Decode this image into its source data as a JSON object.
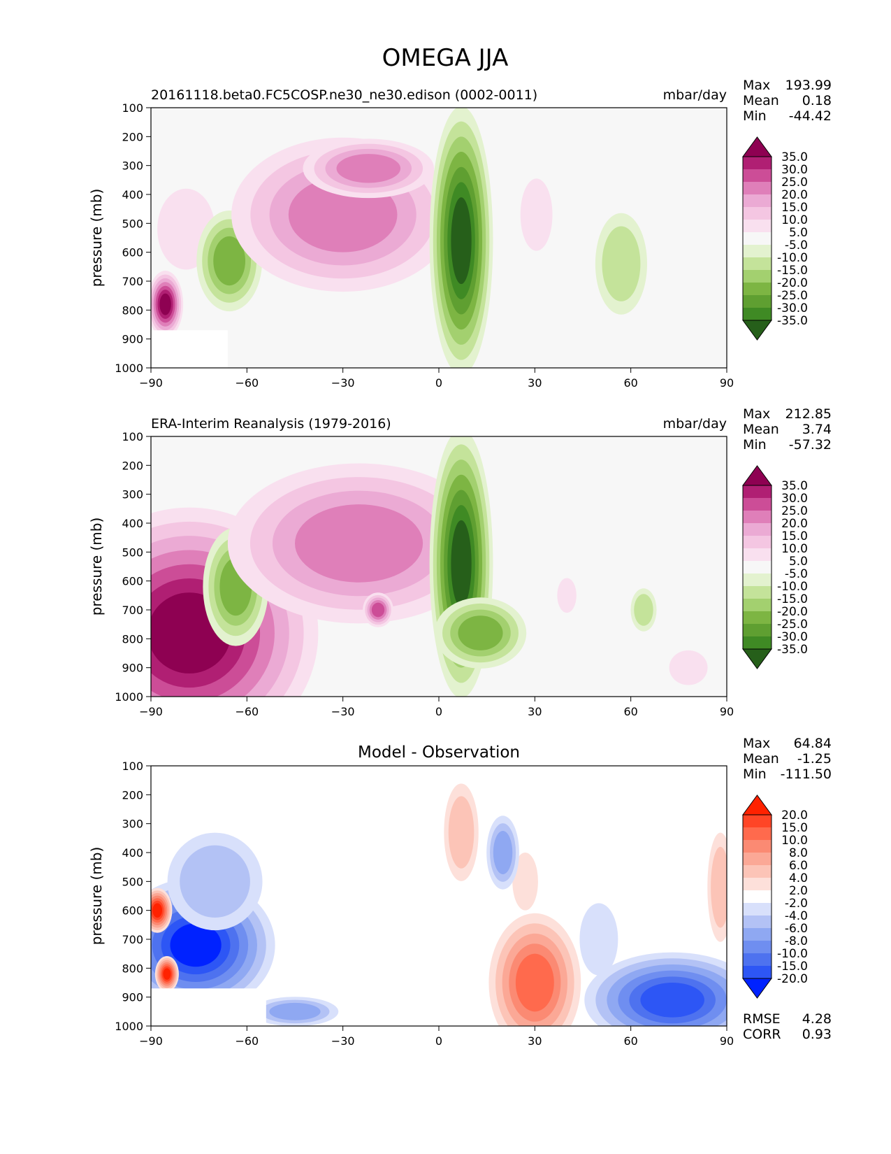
{
  "figure_title": "OMEGA JJA",
  "colors": {
    "omega_levels": [
      "-35.0",
      "-30.0",
      "-25.0",
      "-20.0",
      "-15.0",
      "-10.0",
      "-5.0",
      "5.0",
      "10.0",
      "15.0",
      "20.0",
      "25.0",
      "30.0",
      "35.0"
    ],
    "omega_colors": [
      "#265f1a",
      "#3f8a24",
      "#5f9f31",
      "#7db543",
      "#a3d06f",
      "#c4e39a",
      "#e3f2cf",
      "#f7f7f7",
      "#f9e0ef",
      "#f4c6e2",
      "#ebaad4",
      "#df7fb9",
      "#cc4d97",
      "#b01f73",
      "#8e0152"
    ],
    "diff_levels": [
      "-20.0",
      "-15.0",
      "-10.0",
      "-8.0",
      "-6.0",
      "-4.0",
      "-2.0",
      "2.0",
      "4.0",
      "6.0",
      "8.0",
      "10.0",
      "15.0",
      "20.0"
    ],
    "diff_colors": [
      "#0022ff",
      "#2d56f5",
      "#4e72ef",
      "#6f8ef0",
      "#8fa8f2",
      "#b3c2f5",
      "#d8e0fb",
      "#ffffff",
      "#fde0da",
      "#fcc4b7",
      "#fba896",
      "#fb8a73",
      "#ff6a4d",
      "#ff4526",
      "#ff2200"
    ]
  },
  "chart_data": [
    {
      "type": "heatmap",
      "name_label": "20161118.beta0.FC5COSP.ne30_ne30.edison (0002-0011)",
      "center_title": "",
      "units": "mbar/day",
      "ylabel": "pressure (mb)",
      "xlabel": "",
      "xlim": [
        -90,
        90
      ],
      "ylim": [
        1000,
        100
      ],
      "x_ticks": [
        "−90",
        "−60",
        "−30",
        "0",
        "30",
        "60",
        "90"
      ],
      "y_ticks": [
        "100",
        "200",
        "300",
        "400",
        "500",
        "600",
        "700",
        "800",
        "900",
        "1000"
      ],
      "stats": [
        [
          "Max",
          "193.99"
        ],
        [
          "Mean",
          "0.18"
        ],
        [
          "Min",
          "-44.42"
        ]
      ],
      "colorbar": "omega",
      "surface_mask": {
        "lat": [
          -90,
          -66
        ],
        "p_from": 870
      },
      "features": [
        {
          "lat": -79,
          "p": 520,
          "w": 9,
          "h": 280,
          "level": 8
        },
        {
          "lat": -65.5,
          "p": 630,
          "w": 5,
          "h": 170,
          "level": 3
        },
        {
          "lat": -30,
          "p": 470,
          "w": 17,
          "h": 260,
          "level": 11
        },
        {
          "lat": -22,
          "p": 310,
          "w": 10,
          "h": 100,
          "level": 11
        },
        {
          "lat": 7,
          "p": 560,
          "w": 3.2,
          "h": 300,
          "level": 0
        },
        {
          "lat": 30.5,
          "p": 470,
          "w": 5,
          "h": 250,
          "level": 8
        },
        {
          "lat": 57,
          "p": 640,
          "w": 6,
          "h": 260,
          "level": 5
        },
        {
          "lat": -85.5,
          "p": 780,
          "w": 1.8,
          "h": 75,
          "level": 14
        }
      ]
    },
    {
      "type": "heatmap",
      "name_label": "ERA-Interim Reanalysis (1979-2016)",
      "center_title": "",
      "units": "mbar/day",
      "ylabel": "pressure (mb)",
      "xlabel": "",
      "xlim": [
        -90,
        90
      ],
      "ylim": [
        1000,
        100
      ],
      "x_ticks": [
        "−90",
        "−60",
        "−30",
        "0",
        "30",
        "60",
        "90"
      ],
      "y_ticks": [
        "100",
        "200",
        "300",
        "400",
        "500",
        "600",
        "700",
        "800",
        "900",
        "1000"
      ],
      "stats": [
        [
          "Max",
          "212.85"
        ],
        [
          "Mean",
          "3.74"
        ],
        [
          "Min",
          "-57.32"
        ]
      ],
      "colorbar": "omega",
      "surface_mask": null,
      "features": [
        {
          "lat": -78,
          "p": 780,
          "w": 13,
          "h": 280,
          "level": 14
        },
        {
          "lat": -63.5,
          "p": 620,
          "w": 5,
          "h": 200,
          "level": 3
        },
        {
          "lat": -25,
          "p": 470,
          "w": 20,
          "h": 270,
          "level": 11
        },
        {
          "lat": -19,
          "p": 700,
          "w": 2,
          "h": 50,
          "level": 12
        },
        {
          "lat": 7,
          "p": 540,
          "w": 3.2,
          "h": 300,
          "level": 0
        },
        {
          "lat": 13,
          "p": 780,
          "w": 7,
          "h": 120,
          "level": 3
        },
        {
          "lat": 40,
          "p": 650,
          "w": 3,
          "h": 120,
          "level": 8
        },
        {
          "lat": 78,
          "p": 900,
          "w": 6,
          "h": 120,
          "level": 8
        },
        {
          "lat": 64,
          "p": 700,
          "w": 3,
          "h": 110,
          "level": 5
        }
      ]
    },
    {
      "type": "heatmap",
      "name_label": "",
      "center_title": "Model - Observation",
      "units": "",
      "ylabel": "pressure (mb)",
      "xlabel": "",
      "xlim": [
        -90,
        90
      ],
      "ylim": [
        1000,
        100
      ],
      "x_ticks": [
        "−90",
        "−60",
        "−30",
        "0",
        "30",
        "60",
        "90"
      ],
      "y_ticks": [
        "100",
        "200",
        "300",
        "400",
        "500",
        "600",
        "700",
        "800",
        "900",
        "1000"
      ],
      "stats": [
        [
          "Max",
          "64.84"
        ],
        [
          "Mean",
          "-1.25"
        ],
        [
          "Min",
          "-111.50"
        ]
      ],
      "bottom_stats": [
        [
          "RMSE",
          "4.28"
        ],
        [
          "CORR",
          "0.93"
        ]
      ],
      "colorbar": "diff",
      "surface_mask": {
        "lat": [
          -90,
          -54
        ],
        "p_from": 870
      },
      "features": [
        {
          "lat": -76,
          "p": 720,
          "w": 8,
          "h": 150,
          "level": 0
        },
        {
          "lat": -70,
          "p": 500,
          "w": 11,
          "h": 250,
          "level": 5
        },
        {
          "lat": 7,
          "p": 330,
          "w": 4,
          "h": 250,
          "level": 9
        },
        {
          "lat": 30,
          "p": 850,
          "w": 6,
          "h": 200,
          "level": 12
        },
        {
          "lat": 27,
          "p": 500,
          "w": 4,
          "h": 200,
          "level": 8
        },
        {
          "lat": 20,
          "p": 400,
          "w": 3,
          "h": 150,
          "level": 4
        },
        {
          "lat": 73,
          "p": 910,
          "w": 10,
          "h": 120,
          "level": 1
        },
        {
          "lat": -45,
          "p": 950,
          "w": 8,
          "h": 60,
          "level": 4
        },
        {
          "lat": 88,
          "p": 520,
          "w": 3,
          "h": 280,
          "level": 9
        },
        {
          "lat": 50,
          "p": 700,
          "w": 6,
          "h": 250,
          "level": 6
        },
        {
          "lat": -88,
          "p": 600,
          "w": 1.5,
          "h": 50,
          "level": 14
        },
        {
          "lat": -85,
          "p": 820,
          "w": 1.2,
          "h": 40,
          "level": 14
        }
      ]
    }
  ]
}
